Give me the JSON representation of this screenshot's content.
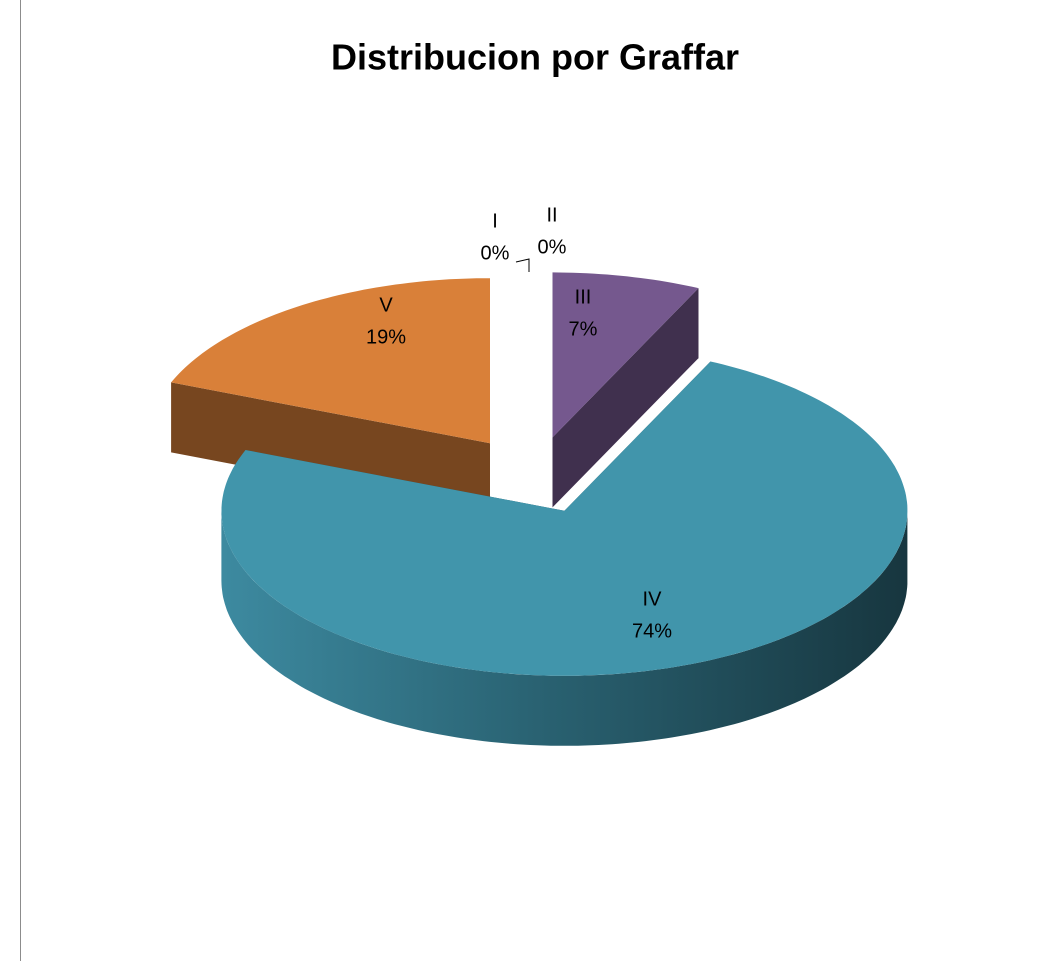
{
  "chart_data": {
    "type": "pie",
    "title": "Distribucion por Graffar",
    "categories": [
      "I",
      "II",
      "III",
      "IV",
      "V"
    ],
    "values": [
      0,
      0,
      7,
      74,
      19
    ],
    "value_labels": [
      "0%",
      "0%",
      "7%",
      "74%",
      "19%"
    ],
    "colors": [
      null,
      null,
      "#75588e",
      "#4195ab",
      "#d98039"
    ],
    "exploded": true,
    "three_d": true
  }
}
